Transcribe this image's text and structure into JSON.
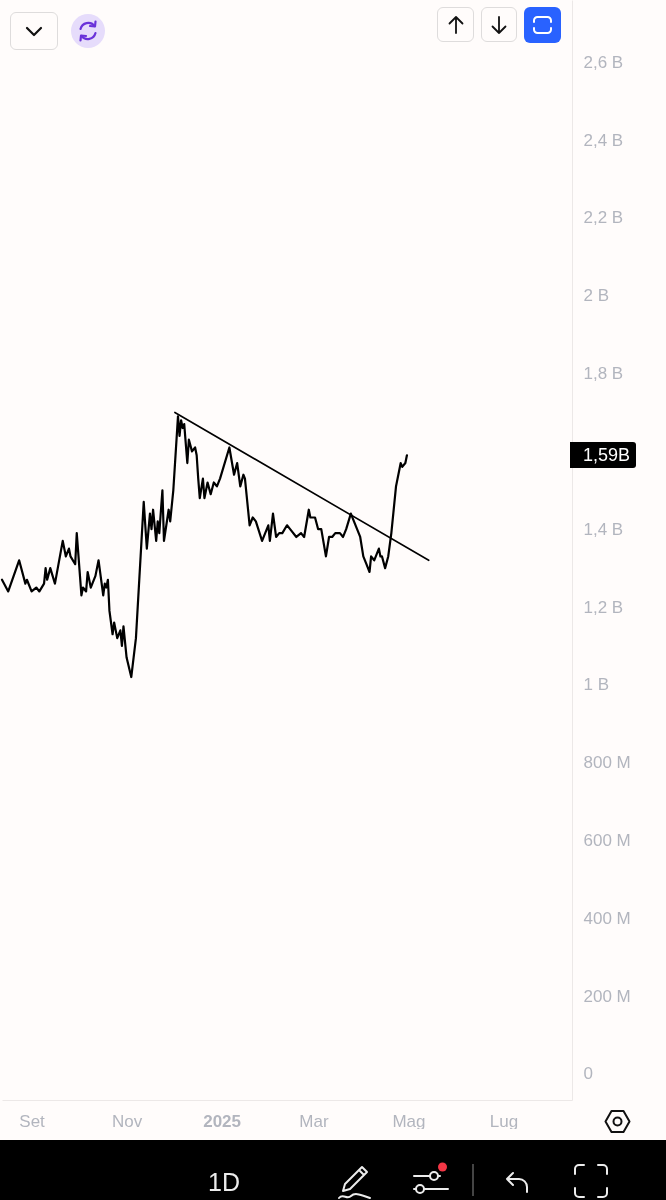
{
  "chart_data": {
    "type": "line",
    "x": [
      "2024-08-13",
      "2024-08-17",
      "2024-08-24",
      "2024-08-28",
      "2024-08-29",
      "2024-09-01",
      "2024-09-04",
      "2024-09-06",
      "2024-09-09",
      "2024-09-10",
      "2024-09-11",
      "2024-09-13",
      "2024-09-16",
      "2024-09-21",
      "2024-09-23",
      "2024-09-25",
      "2024-09-26",
      "2024-09-29",
      "2024-09-30",
      "2024-10-03",
      "2024-10-04",
      "2024-10-06",
      "2024-10-07",
      "2024-10-09",
      "2024-10-12",
      "2024-10-14",
      "2024-10-17",
      "2024-10-18",
      "2024-10-19",
      "2024-10-20",
      "2024-10-21",
      "2024-10-23",
      "2024-10-24",
      "2024-10-26",
      "2024-10-28",
      "2024-10-29",
      "2024-10-30",
      "2024-11-01",
      "2024-11-04",
      "2024-11-07",
      "2024-11-12",
      "2024-11-14",
      "2024-11-16",
      "2024-11-17",
      "2024-11-18",
      "2024-11-20",
      "2024-11-21",
      "2024-11-22",
      "2024-11-24",
      "2024-11-25",
      "2024-11-28",
      "2024-11-29",
      "2024-12-01",
      "2024-12-04",
      "2024-12-05",
      "2024-12-06",
      "2024-12-07",
      "2024-12-08",
      "2024-12-10",
      "2024-12-11",
      "2024-12-13",
      "2024-12-15",
      "2024-12-16",
      "2024-12-17",
      "2024-12-18",
      "2024-12-20",
      "2024-12-21",
      "2024-12-23",
      "2024-12-25",
      "2024-12-27",
      "2024-12-29",
      "2024-12-31",
      "2025-01-06",
      "2025-01-09",
      "2025-01-11",
      "2025-01-13",
      "2025-01-15",
      "2025-01-16",
      "2025-01-19",
      "2025-01-21",
      "2025-01-23",
      "2025-01-27",
      "2025-01-31",
      "2025-02-01",
      "2025-02-03",
      "2025-02-05",
      "2025-02-07",
      "2025-02-09",
      "2025-02-12",
      "2025-02-14",
      "2025-02-18",
      "2025-02-21",
      "2025-02-23",
      "2025-02-26",
      "2025-02-27",
      "2025-03-02",
      "2025-03-04",
      "2025-03-06",
      "2025-03-09",
      "2025-03-11",
      "2025-03-13",
      "2025-03-15",
      "2025-03-18",
      "2025-03-20",
      "2025-03-22",
      "2025-03-25",
      "2025-03-27",
      "2025-03-29",
      "2025-03-31",
      "2025-04-02",
      "2025-04-04",
      "2025-04-06",
      "2025-04-07",
      "2025-04-09",
      "2025-04-12",
      "2025-04-13",
      "2025-04-14",
      "2025-04-16",
      "2025-04-18",
      "2025-04-20",
      "2025-04-23",
      "2025-04-26",
      "2025-04-27",
      "2025-04-29",
      "2025-04-30"
    ],
    "series": [
      {
        "color": "#000000",
        "values": [
          1270000000,
          1240000000,
          1320000000,
          1260000000,
          1270000000,
          1240000000,
          1250000000,
          1240000000,
          1260000000,
          1300000000,
          1270000000,
          1300000000,
          1260000000,
          1370000000,
          1330000000,
          1350000000,
          1330000000,
          1310000000,
          1390000000,
          1230000000,
          1250000000,
          1240000000,
          1290000000,
          1250000000,
          1280000000,
          1320000000,
          1230000000,
          1260000000,
          1250000000,
          1270000000,
          1190000000,
          1130000000,
          1160000000,
          1120000000,
          1140000000,
          1100000000,
          1150000000,
          1070000000,
          1020000000,
          1120000000,
          1470000000,
          1350000000,
          1440000000,
          1400000000,
          1450000000,
          1370000000,
          1420000000,
          1390000000,
          1500000000,
          1370000000,
          1450000000,
          1420000000,
          1500000000,
          1690000000,
          1640000000,
          1680000000,
          1660000000,
          1670000000,
          1570000000,
          1630000000,
          1600000000,
          1610000000,
          1590000000,
          1530000000,
          1480000000,
          1530000000,
          1480000000,
          1520000000,
          1490000000,
          1520000000,
          1510000000,
          1530000000,
          1610000000,
          1540000000,
          1570000000,
          1510000000,
          1540000000,
          1530000000,
          1410000000,
          1430000000,
          1420000000,
          1370000000,
          1410000000,
          1370000000,
          1440000000,
          1380000000,
          1390000000,
          1390000000,
          1410000000,
          1400000000,
          1380000000,
          1390000000,
          1380000000,
          1450000000,
          1430000000,
          1430000000,
          1400000000,
          1400000000,
          1330000000,
          1380000000,
          1380000000,
          1390000000,
          1390000000,
          1380000000,
          1400000000,
          1440000000,
          1420000000,
          1400000000,
          1380000000,
          1330000000,
          1310000000,
          1290000000,
          1330000000,
          1320000000,
          1350000000,
          1330000000,
          1330000000,
          1300000000,
          1330000000,
          1390000000,
          1510000000,
          1570000000,
          1560000000,
          1570000000,
          1590000000
        ]
      },
      {
        "type": "line",
        "color": "#000000",
        "x": [
          "2024-12-02",
          "2025-05-14"
        ],
        "values": [
          1700000000,
          1320000000
        ]
      }
    ],
    "xlim": [
      "2024-08-13",
      "2025-08-14"
    ],
    "xticks": [
      {
        "value": "2024-09-01",
        "label": "Set"
      },
      {
        "value": "2024-11-01",
        "label": "Nov"
      },
      {
        "value": "2025-01-01",
        "label": "2025"
      },
      {
        "value": "2025-03-01",
        "label": "Mar"
      },
      {
        "value": "2025-05-01",
        "label": "Mag"
      },
      {
        "value": "2025-07-01",
        "label": "Lug"
      }
    ],
    "ylim": [
      -67000000,
      2760000000
    ],
    "yticks": [
      0,
      {
        "value": 200000000,
        "label": "200 M"
      },
      {
        "value": 400000000,
        "label": "400 M"
      },
      {
        "value": 600000000,
        "label": "600 M"
      },
      {
        "value": 800000000,
        "label": "800 M"
      },
      {
        "value": 1000000000,
        "label": "1 B"
      },
      {
        "value": 1200000000,
        "label": "1,2 B"
      },
      {
        "value": 1400000000,
        "label": "1,4 B"
      },
      {
        "value": 1800000000,
        "label": "1,8 B"
      },
      {
        "value": 2000000000,
        "label": "2 B"
      },
      {
        "value": 2200000000,
        "label": "2,2 B"
      },
      {
        "value": 2400000000,
        "label": "2,4 B"
      },
      {
        "value": 2600000000,
        "label": "2,6 B"
      }
    ],
    "annotations": [
      "1,59B",
      "1D"
    ]
  }
}
